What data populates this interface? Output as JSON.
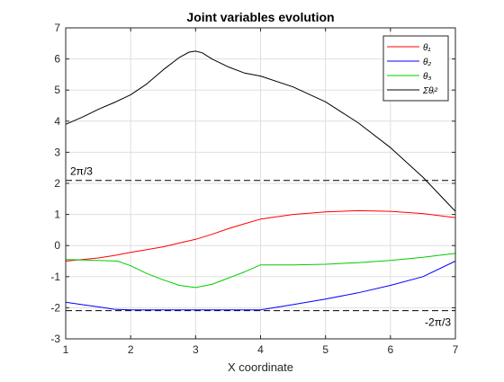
{
  "chart_data": {
    "type": "line",
    "title": "Joint variables evolution",
    "xlabel": "X coordinate",
    "ylabel": "",
    "xlim": [
      1,
      7
    ],
    "ylim": [
      -3,
      7
    ],
    "xticks": [
      "1",
      "2",
      "3",
      "4",
      "5",
      "6",
      "7"
    ],
    "yticks": [
      "-3",
      "-2",
      "-1",
      "0",
      "1",
      "2",
      "3",
      "4",
      "5",
      "6",
      "7"
    ],
    "grid": true,
    "legend_position": "top-right",
    "reference_lines": [
      {
        "label": "2π/3",
        "value": 2.0944,
        "style": "dashed",
        "color": "#000000"
      },
      {
        "label": "-2π/3",
        "value": -2.0944,
        "style": "dashed",
        "color": "#000000"
      }
    ],
    "series": [
      {
        "name": "θ₁",
        "color": "#ff0000",
        "x": [
          1,
          1.25,
          1.5,
          1.75,
          2,
          2.25,
          2.5,
          2.75,
          3,
          3.25,
          3.5,
          3.75,
          4,
          4.5,
          5,
          5.5,
          6,
          6.5,
          7
        ],
        "values": [
          -0.5,
          -0.45,
          -0.4,
          -0.32,
          -0.22,
          -0.13,
          -0.04,
          0.08,
          0.2,
          0.36,
          0.54,
          0.7,
          0.85,
          1.0,
          1.08,
          1.12,
          1.1,
          1.03,
          0.9
        ]
      },
      {
        "name": "θ₂",
        "color": "#0000ff",
        "x": [
          1,
          1.25,
          1.5,
          1.75,
          2,
          2.5,
          3,
          3.5,
          4,
          4.5,
          5,
          5.5,
          6,
          6.5,
          7
        ],
        "values": [
          -1.82,
          -1.9,
          -1.97,
          -2.05,
          -2.07,
          -2.07,
          -2.07,
          -2.07,
          -2.07,
          -1.9,
          -1.72,
          -1.52,
          -1.28,
          -1.0,
          -0.5
        ]
      },
      {
        "name": "θ₃",
        "color": "#00cc00",
        "x": [
          1,
          1.5,
          1.8,
          2,
          2.25,
          2.5,
          2.75,
          3,
          3.25,
          3.5,
          3.75,
          4,
          4.5,
          5,
          5.5,
          6,
          6.5,
          7
        ],
        "values": [
          -0.45,
          -0.48,
          -0.5,
          -0.65,
          -0.9,
          -1.1,
          -1.28,
          -1.35,
          -1.25,
          -1.05,
          -0.85,
          -0.62,
          -0.62,
          -0.6,
          -0.55,
          -0.48,
          -0.38,
          -0.25
        ]
      },
      {
        "name": "Σθᵢ²",
        "color": "#000000",
        "x": [
          1,
          1.25,
          1.5,
          1.75,
          2,
          2.25,
          2.5,
          2.75,
          2.9,
          3,
          3.1,
          3.25,
          3.5,
          3.75,
          4,
          4.5,
          5,
          5.5,
          6,
          6.5,
          7
        ],
        "values": [
          3.9,
          4.12,
          4.38,
          4.6,
          4.85,
          5.2,
          5.65,
          6.05,
          6.22,
          6.25,
          6.2,
          6.0,
          5.75,
          5.55,
          5.45,
          5.1,
          4.62,
          3.95,
          3.15,
          2.2,
          1.1
        ]
      }
    ]
  }
}
